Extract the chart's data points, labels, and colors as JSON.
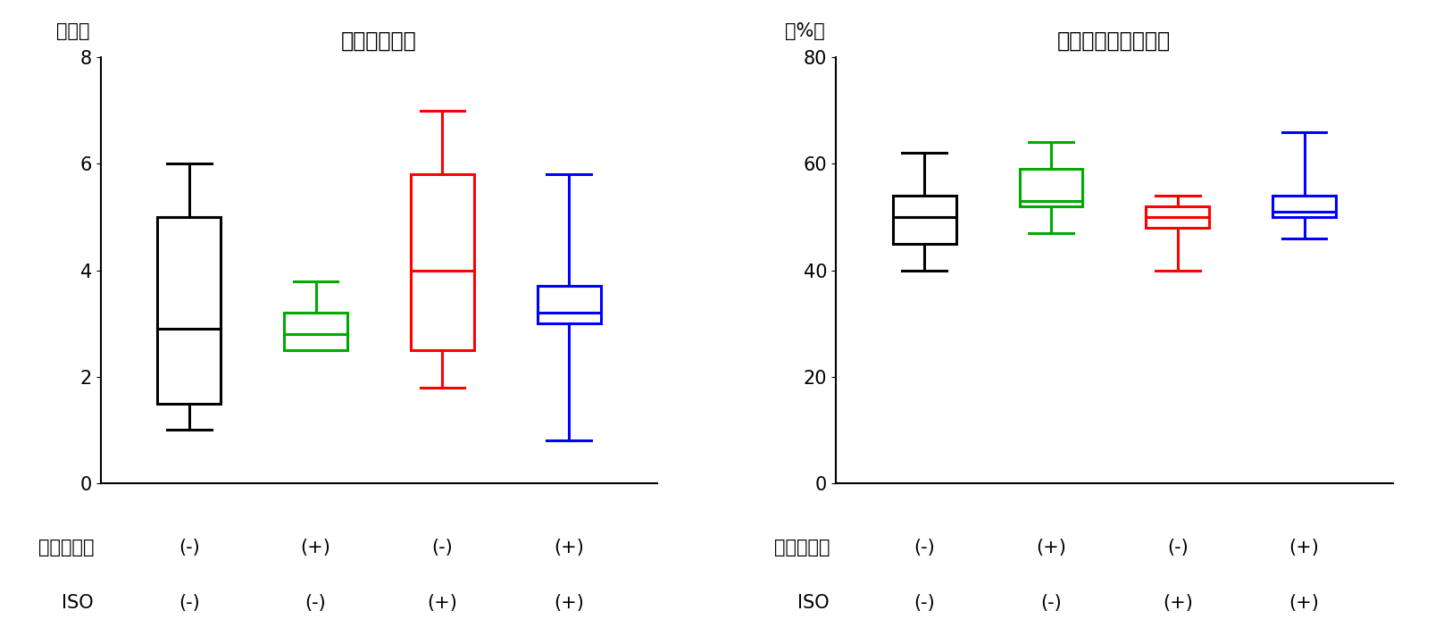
{
  "left_title": "大腸内糞便数",
  "left_ylabel": "（個）",
  "left_ylim": [
    0,
    8
  ],
  "left_yticks": [
    0,
    2,
    4,
    6,
    8
  ],
  "left_boxes": [
    {
      "whislo": 1.0,
      "q1": 1.5,
      "med": 2.9,
      "q3": 5.0,
      "whishi": 6.0,
      "color": "black"
    },
    {
      "whislo": 2.5,
      "q1": 2.5,
      "med": 2.8,
      "q3": 3.2,
      "whishi": 3.8,
      "color": "#00aa00"
    },
    {
      "whislo": 1.8,
      "q1": 2.5,
      "med": 4.0,
      "q3": 5.8,
      "whishi": 7.0,
      "color": "red"
    },
    {
      "whislo": 0.8,
      "q1": 3.0,
      "med": 3.2,
      "q3": 3.7,
      "whishi": 5.8,
      "color": "blue"
    }
  ],
  "right_title": "糞便中の水分の割合",
  "right_ylabel": "（%）",
  "right_ylim": [
    0,
    80
  ],
  "right_yticks": [
    0,
    20,
    40,
    60,
    80
  ],
  "right_boxes": [
    {
      "whislo": 40,
      "q1": 45,
      "med": 50,
      "q3": 54,
      "whishi": 62,
      "color": "black"
    },
    {
      "whislo": 47,
      "q1": 52,
      "med": 53,
      "q3": 59,
      "whishi": 64,
      "color": "#00aa00"
    },
    {
      "whislo": 40,
      "q1": 48,
      "med": 50,
      "q3": 52,
      "whishi": 54,
      "color": "red"
    },
    {
      "whislo": 46,
      "q1": 50,
      "med": 51,
      "q3": 54,
      "whishi": 66,
      "color": "blue"
    }
  ],
  "x_labels_row1": [
    "(-)",
    "(+)",
    "(-)",
    "(+)"
  ],
  "x_labels_row2": [
    "(-)",
    "(-)",
    "(+)",
    "(+)"
  ],
  "row1_label": "ユーグレナ",
  "row2_label": "ISO",
  "positions": [
    1,
    2,
    3,
    4
  ],
  "box_width": 0.5,
  "linewidth": 2.2,
  "fontsize_title": 17,
  "fontsize_ylabel": 15,
  "fontsize_tick": 15,
  "fontsize_xlabel": 15,
  "xlim": [
    0.3,
    4.7
  ]
}
